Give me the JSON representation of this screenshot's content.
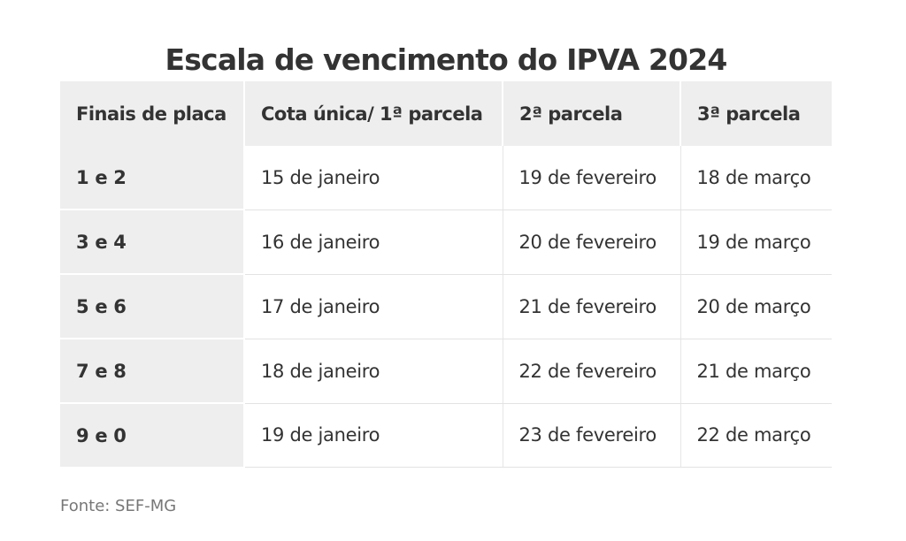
{
  "title": "Escala de vencimento do IPVA 2024",
  "table": {
    "headers": [
      "Finais de placa",
      "Cota única/ 1ª parcela",
      "2ª parcela",
      "3ª parcela"
    ],
    "rows": [
      [
        "1 e 2",
        "15 de janeiro",
        "19 de fevereiro",
        "18 de março"
      ],
      [
        "3 e 4",
        "16 de janeiro",
        "20 de fevereiro",
        "19 de março"
      ],
      [
        "5 e 6",
        "17 de janeiro",
        "21 de fevereiro",
        "20 de março"
      ],
      [
        "7 e 8",
        "18 de janeiro",
        "22 de fevereiro",
        "21 de março"
      ],
      [
        "9 e 0",
        "19 de janeiro",
        "23 de fevereiro",
        "22 de março"
      ]
    ]
  },
  "source": "Fonte: SEF-MG",
  "colors": {
    "text": "#333333",
    "header_bg": "#eeeeee",
    "source_text": "#777777",
    "row_divider": "#e3e3e3"
  }
}
